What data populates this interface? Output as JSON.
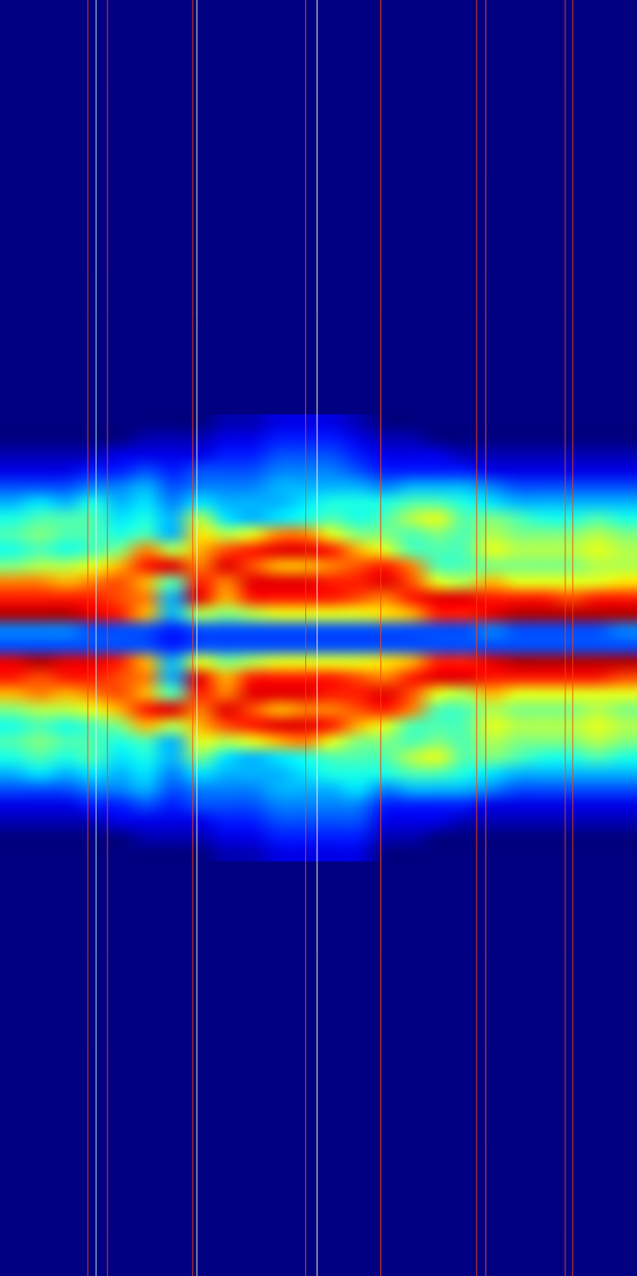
{
  "chart_data": {
    "type": "heatmap",
    "tick_labels": false,
    "xlim": [
      0,
      24
    ],
    "ylim": [
      -40,
      40
    ],
    "color_range": [
      0,
      1
    ],
    "x_bins": [
      0,
      1,
      2,
      3,
      4,
      5,
      6,
      7,
      8,
      9,
      10,
      11,
      12,
      13,
      14,
      15,
      16,
      17,
      18,
      19,
      20,
      21,
      22,
      23,
      24
    ],
    "y_bins": [
      14,
      13,
      12,
      11,
      10,
      9,
      8,
      7,
      6,
      5,
      4,
      3,
      2,
      1,
      0,
      -1,
      -2,
      -3,
      -4,
      -5,
      -6,
      -7,
      -8,
      -9,
      -10,
      -11,
      -12,
      -13,
      -14
    ],
    "z": [
      [
        0,
        0,
        0,
        0,
        0,
        0,
        0,
        0,
        0.05,
        0.05,
        0.1,
        0.1,
        0.1,
        0.05,
        0,
        0,
        0,
        0,
        0,
        0,
        0,
        0,
        0,
        0
      ],
      [
        0,
        0,
        0,
        0,
        0,
        0.05,
        0.05,
        0.05,
        0.1,
        0.1,
        0.15,
        0.15,
        0.15,
        0.1,
        0.05,
        0.05,
        0,
        0,
        0,
        0,
        0,
        0,
        0,
        0
      ],
      [
        0.05,
        0.05,
        0.05,
        0.05,
        0.1,
        0.1,
        0.1,
        0.1,
        0.15,
        0.15,
        0.2,
        0.2,
        0.2,
        0.15,
        0.1,
        0.1,
        0.1,
        0.05,
        0.05,
        0.05,
        0.05,
        0.05,
        0.05,
        0.05
      ],
      [
        0.1,
        0.1,
        0.1,
        0.15,
        0.15,
        0.2,
        0.15,
        0.2,
        0.2,
        0.2,
        0.25,
        0.25,
        0.25,
        0.2,
        0.15,
        0.15,
        0.15,
        0.15,
        0.1,
        0.1,
        0.1,
        0.1,
        0.1,
        0.1
      ],
      [
        0.2,
        0.2,
        0.2,
        0.25,
        0.25,
        0.3,
        0.2,
        0.25,
        0.25,
        0.25,
        0.3,
        0.3,
        0.3,
        0.3,
        0.25,
        0.3,
        0.3,
        0.3,
        0.25,
        0.2,
        0.2,
        0.2,
        0.2,
        0.2
      ],
      [
        0.3,
        0.35,
        0.3,
        0.4,
        0.3,
        0.35,
        0.25,
        0.35,
        0.3,
        0.3,
        0.3,
        0.35,
        0.4,
        0.4,
        0.4,
        0.45,
        0.45,
        0.4,
        0.35,
        0.3,
        0.3,
        0.3,
        0.3,
        0.3
      ],
      [
        0.4,
        0.45,
        0.45,
        0.45,
        0.35,
        0.4,
        0.3,
        0.55,
        0.35,
        0.3,
        0.35,
        0.4,
        0.45,
        0.4,
        0.45,
        0.55,
        0.6,
        0.45,
        0.5,
        0.45,
        0.4,
        0.4,
        0.45,
        0.4
      ],
      [
        0.45,
        0.5,
        0.45,
        0.45,
        0.4,
        0.45,
        0.3,
        0.65,
        0.55,
        0.6,
        0.75,
        0.75,
        0.6,
        0.5,
        0.5,
        0.45,
        0.5,
        0.45,
        0.55,
        0.5,
        0.5,
        0.5,
        0.55,
        0.5
      ],
      [
        0.4,
        0.45,
        0.4,
        0.45,
        0.5,
        0.75,
        0.55,
        0.7,
        0.8,
        0.85,
        0.9,
        0.9,
        0.85,
        0.7,
        0.6,
        0.45,
        0.45,
        0.45,
        0.6,
        0.55,
        0.55,
        0.55,
        0.6,
        0.55
      ],
      [
        0.5,
        0.55,
        0.55,
        0.6,
        0.7,
        0.85,
        0.9,
        0.75,
        0.9,
        0.8,
        0.7,
        0.7,
        0.75,
        0.8,
        0.85,
        0.75,
        0.45,
        0.45,
        0.5,
        0.5,
        0.5,
        0.5,
        0.55,
        0.55
      ],
      [
        0.75,
        0.75,
        0.7,
        0.75,
        0.8,
        0.7,
        0.45,
        0.85,
        0.75,
        0.9,
        0.9,
        0.9,
        0.85,
        0.85,
        0.9,
        0.8,
        0.6,
        0.55,
        0.7,
        0.6,
        0.6,
        0.6,
        0.6,
        0.65
      ],
      [
        0.85,
        0.85,
        0.85,
        0.85,
        0.8,
        0.75,
        0.3,
        0.9,
        0.7,
        0.85,
        0.85,
        0.85,
        0.85,
        0.8,
        0.75,
        0.85,
        0.9,
        0.9,
        0.85,
        0.85,
        0.85,
        0.8,
        0.85,
        0.85
      ],
      [
        0.95,
        0.95,
        0.95,
        0.9,
        0.85,
        0.7,
        0.3,
        0.55,
        0.5,
        0.55,
        0.6,
        0.6,
        0.6,
        0.6,
        0.65,
        0.7,
        0.85,
        0.85,
        0.9,
        0.95,
        0.95,
        0.95,
        0.95,
        0.95
      ],
      [
        0.25,
        0.25,
        0.25,
        0.2,
        0.2,
        0.2,
        0.15,
        0.2,
        0.2,
        0.2,
        0.2,
        0.2,
        0.2,
        0.2,
        0.2,
        0.2,
        0.2,
        0.2,
        0.25,
        0.2,
        0.2,
        0.2,
        0.2,
        0.25
      ],
      [
        0.2,
        0.2,
        0.2,
        0.2,
        0.2,
        0.2,
        0.15,
        0.2,
        0.2,
        0.2,
        0.2,
        0.2,
        0.2,
        0.2,
        0.2,
        0.2,
        0.2,
        0.2,
        0.2,
        0.2,
        0.2,
        0.2,
        0.2,
        0.2
      ],
      [
        0.9,
        0.95,
        0.9,
        0.9,
        0.85,
        0.7,
        0.3,
        0.6,
        0.5,
        0.55,
        0.6,
        0.6,
        0.6,
        0.6,
        0.65,
        0.7,
        0.85,
        0.85,
        0.9,
        0.95,
        0.95,
        0.95,
        0.95,
        0.95
      ],
      [
        0.85,
        0.8,
        0.85,
        0.85,
        0.8,
        0.75,
        0.3,
        0.9,
        0.7,
        0.85,
        0.85,
        0.85,
        0.85,
        0.8,
        0.75,
        0.85,
        0.9,
        0.9,
        0.85,
        0.85,
        0.85,
        0.85,
        0.85,
        0.8
      ],
      [
        0.7,
        0.75,
        0.7,
        0.75,
        0.8,
        0.7,
        0.45,
        0.85,
        0.75,
        0.9,
        0.9,
        0.9,
        0.85,
        0.85,
        0.9,
        0.8,
        0.6,
        0.55,
        0.7,
        0.6,
        0.6,
        0.6,
        0.6,
        0.6
      ],
      [
        0.5,
        0.55,
        0.55,
        0.6,
        0.7,
        0.85,
        0.9,
        0.75,
        0.9,
        0.8,
        0.7,
        0.75,
        0.75,
        0.8,
        0.85,
        0.75,
        0.45,
        0.45,
        0.55,
        0.5,
        0.5,
        0.5,
        0.55,
        0.5
      ],
      [
        0.4,
        0.45,
        0.4,
        0.45,
        0.5,
        0.7,
        0.55,
        0.7,
        0.8,
        0.85,
        0.9,
        0.9,
        0.85,
        0.7,
        0.6,
        0.45,
        0.45,
        0.45,
        0.6,
        0.55,
        0.55,
        0.55,
        0.6,
        0.55
      ],
      [
        0.45,
        0.5,
        0.45,
        0.45,
        0.4,
        0.45,
        0.3,
        0.6,
        0.55,
        0.6,
        0.7,
        0.75,
        0.6,
        0.5,
        0.5,
        0.45,
        0.5,
        0.45,
        0.55,
        0.5,
        0.5,
        0.5,
        0.55,
        0.5
      ],
      [
        0.4,
        0.45,
        0.4,
        0.45,
        0.35,
        0.4,
        0.3,
        0.5,
        0.35,
        0.3,
        0.35,
        0.4,
        0.45,
        0.45,
        0.45,
        0.55,
        0.6,
        0.45,
        0.5,
        0.45,
        0.4,
        0.4,
        0.45,
        0.4
      ],
      [
        0.3,
        0.35,
        0.3,
        0.35,
        0.3,
        0.35,
        0.25,
        0.35,
        0.3,
        0.3,
        0.3,
        0.35,
        0.4,
        0.4,
        0.4,
        0.45,
        0.45,
        0.4,
        0.35,
        0.3,
        0.3,
        0.3,
        0.3,
        0.3
      ],
      [
        0.2,
        0.2,
        0.2,
        0.25,
        0.25,
        0.3,
        0.2,
        0.25,
        0.25,
        0.25,
        0.3,
        0.3,
        0.3,
        0.35,
        0.25,
        0.3,
        0.3,
        0.3,
        0.25,
        0.2,
        0.2,
        0.2,
        0.2,
        0.2
      ],
      [
        0.1,
        0.1,
        0.1,
        0.15,
        0.15,
        0.2,
        0.15,
        0.2,
        0.2,
        0.2,
        0.25,
        0.25,
        0.25,
        0.25,
        0.15,
        0.15,
        0.15,
        0.15,
        0.1,
        0.1,
        0.1,
        0.1,
        0.1,
        0.1
      ],
      [
        0.05,
        0.05,
        0.05,
        0.05,
        0.1,
        0.1,
        0.1,
        0.1,
        0.15,
        0.15,
        0.2,
        0.2,
        0.2,
        0.2,
        0.1,
        0.1,
        0.1,
        0.05,
        0.05,
        0.05,
        0.05,
        0.05,
        0.05,
        0.05
      ],
      [
        0,
        0,
        0,
        0,
        0,
        0.05,
        0.05,
        0.05,
        0.1,
        0.1,
        0.15,
        0.15,
        0.15,
        0.15,
        0.05,
        0.05,
        0,
        0,
        0,
        0,
        0,
        0,
        0,
        0
      ],
      [
        0,
        0,
        0,
        0,
        0,
        0,
        0,
        0,
        0.05,
        0.05,
        0.1,
        0.1,
        0.1,
        0.1,
        0,
        0,
        0,
        0,
        0,
        0,
        0,
        0,
        0,
        0
      ]
    ],
    "vertical_lines": [
      {
        "x": 3.31,
        "color": "#ff4500"
      },
      {
        "x": 3.62,
        "color": "#c8ffff"
      },
      {
        "x": 4.05,
        "color": "#ff4500"
      },
      {
        "x": 7.26,
        "color": "#ff4500"
      },
      {
        "x": 7.42,
        "color": "#ffffc0"
      },
      {
        "x": 11.52,
        "color": "#ff4500"
      },
      {
        "x": 11.95,
        "color": "#ffffe0"
      },
      {
        "x": 14.35,
        "color": "#ff4500"
      },
      {
        "x": 17.96,
        "color": "#ff4500"
      },
      {
        "x": 18.3,
        "color": "#ff4500"
      },
      {
        "x": 21.3,
        "color": "#ff4500"
      },
      {
        "x": 21.58,
        "color": "#ff4500"
      }
    ]
  }
}
